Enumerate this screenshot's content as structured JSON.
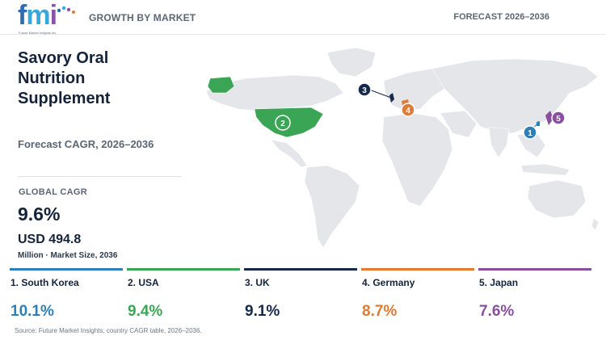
{
  "header": {
    "logo_text": "fmi",
    "logo_tagline": "Future Market Insights Inc.",
    "section_label": "GROWTH BY MARKET",
    "forecast_label": "FORECAST 2026–2036"
  },
  "summary": {
    "title": "Savory Oral Nutrition Supplement",
    "forecast_heading": "Forecast CAGR, 2026–2036",
    "global_cagr_label": "GLOBAL CAGR",
    "global_cagr_value": "9.6%",
    "market_size_value": "USD 494.8",
    "market_size_note": "Million · Market Size, 2036"
  },
  "map": {
    "markers": [
      {
        "rank": "1",
        "country": "South Korea",
        "color": "#2e7fb8"
      },
      {
        "rank": "2",
        "country": "USA",
        "color": "#3aa655"
      },
      {
        "rank": "3",
        "country": "UK",
        "color": "#15294a"
      },
      {
        "rank": "4",
        "country": "Germany",
        "color": "#e07a34"
      },
      {
        "rank": "5",
        "country": "Japan",
        "color": "#8a4f9e"
      }
    ],
    "land_color": "#e4e6e9"
  },
  "countries": [
    {
      "label": "1. South Korea",
      "cagr": "10.1%",
      "color": "#2e7fb8"
    },
    {
      "label": "2. USA",
      "cagr": "9.4%",
      "color": "#3aa655"
    },
    {
      "label": "3. UK",
      "cagr": "9.1%",
      "color": "#15294a"
    },
    {
      "label": "4. Germany",
      "cagr": "8.7%",
      "color": "#e07a34"
    },
    {
      "label": "5. Japan",
      "cagr": "7.6%",
      "color": "#8a4f9e"
    }
  ],
  "footer": {
    "source": "Source: Future Market Insights; country CAGR table, 2026–2036."
  }
}
